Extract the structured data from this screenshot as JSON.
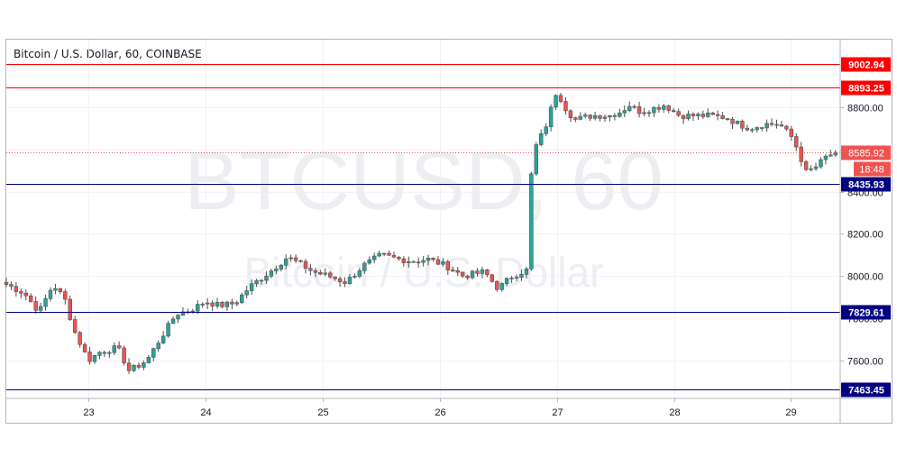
{
  "chart_data": {
    "type": "candlestick",
    "title": "Bitcoin / U.S. Dollar, 60, COINBASE",
    "watermark": {
      "symbol": "BTCUSD, 60",
      "description": "Bitcoin / U.S. Dollar"
    },
    "price_axis": {
      "range": [
        7420,
        9120
      ],
      "ticks": [
        "7600.00",
        "7800.00",
        "8000.00",
        "8200.00",
        "8400.00",
        "8600.00",
        "8800.00",
        "9000.00"
      ]
    },
    "time_axis": {
      "range": [
        22.3,
        29.42
      ],
      "ticks": [
        {
          "label": "23",
          "day": 23
        },
        {
          "label": "24",
          "day": 24
        },
        {
          "label": "25",
          "day": 25
        },
        {
          "label": "26",
          "day": 26
        },
        {
          "label": "27",
          "day": 27
        },
        {
          "label": "28",
          "day": 28
        },
        {
          "label": "29",
          "day": 29
        }
      ]
    },
    "levels": [
      {
        "value": 9002.94,
        "label": "9002.94",
        "color": "#ff0000"
      },
      {
        "value": 8893.25,
        "label": "8893.25",
        "color": "#ff0000"
      },
      {
        "value": 8435.93,
        "label": "8435.93",
        "color": "#000080"
      },
      {
        "value": 7829.61,
        "label": "7829.61",
        "color": "#000080"
      },
      {
        "value": 7463.45,
        "label": "7463.45",
        "color": "#000080"
      }
    ],
    "last_price": {
      "value": 8585.92,
      "label": "8585.92",
      "countdown": "18:48",
      "color": "#ef5350"
    },
    "colors": {
      "up": "#26a69a",
      "down": "#ef5350",
      "border": "#4e4e4e"
    },
    "path_points": [
      [
        22.3,
        7960
      ],
      [
        22.45,
        7920
      ],
      [
        22.58,
        7830
      ],
      [
        22.7,
        7960
      ],
      [
        22.8,
        7890
      ],
      [
        22.88,
        7740
      ],
      [
        23.0,
        7600
      ],
      [
        23.1,
        7640
      ],
      [
        23.25,
        7660
      ],
      [
        23.35,
        7550
      ],
      [
        23.5,
        7600
      ],
      [
        23.6,
        7690
      ],
      [
        23.75,
        7820
      ],
      [
        23.88,
        7840
      ],
      [
        24.0,
        7880
      ],
      [
        24.12,
        7860
      ],
      [
        24.25,
        7870
      ],
      [
        24.38,
        7950
      ],
      [
        24.55,
        8020
      ],
      [
        24.7,
        8090
      ],
      [
        24.8,
        8060
      ],
      [
        24.92,
        8020
      ],
      [
        25.05,
        8000
      ],
      [
        25.2,
        7970
      ],
      [
        25.35,
        8050
      ],
      [
        25.5,
        8100
      ],
      [
        25.65,
        8080
      ],
      [
        25.78,
        8070
      ],
      [
        25.9,
        8080
      ],
      [
        26.05,
        8050
      ],
      [
        26.2,
        8000
      ],
      [
        26.38,
        8020
      ],
      [
        26.5,
        7940
      ],
      [
        26.62,
        8000
      ],
      [
        26.75,
        8030
      ],
      [
        26.79,
        8580
      ],
      [
        26.9,
        8700
      ],
      [
        27.0,
        8880
      ],
      [
        27.07,
        8800
      ],
      [
        27.15,
        8740
      ],
      [
        27.3,
        8760
      ],
      [
        27.45,
        8760
      ],
      [
        27.55,
        8780
      ],
      [
        27.62,
        8810
      ],
      [
        27.7,
        8780
      ],
      [
        27.8,
        8790
      ],
      [
        27.92,
        8810
      ],
      [
        28.05,
        8760
      ],
      [
        28.2,
        8760
      ],
      [
        28.32,
        8760
      ],
      [
        28.45,
        8750
      ],
      [
        28.55,
        8720
      ],
      [
        28.65,
        8700
      ],
      [
        28.78,
        8720
      ],
      [
        28.9,
        8720
      ],
      [
        29.02,
        8650
      ],
      [
        29.13,
        8490
      ],
      [
        29.22,
        8520
      ],
      [
        29.3,
        8565
      ],
      [
        29.38,
        8586
      ]
    ],
    "candle_count": 170
  }
}
